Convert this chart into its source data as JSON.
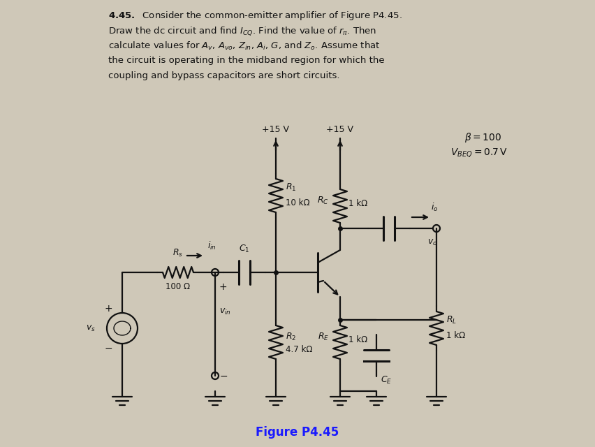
{
  "bg_color": "#cfc8b8",
  "text_color": "#000000",
  "fig_caption": "Figure P4.45",
  "caption_color": "#1a1aff",
  "beta_label": "$\\beta = 100$",
  "vbeq_label": "$V_{BEQ} = 0.7\\,\\mathrm{V}$",
  "vcc_label": "+15 V",
  "Rs_label": "$R_s$",
  "Rs_val": "100 Ω",
  "iin_label": "$i_{in}$",
  "C1_label": "$C_1$",
  "R1_label": "$R_1$",
  "R1_val": "10 kΩ",
  "R2_label": "$R_2$",
  "R2_val": "4.7 kΩ",
  "RC_label": "$R_C$",
  "RC_val": "1 kΩ",
  "RE_label": "$R_E$",
  "RE_val": "1 kΩ",
  "CE_label": "$C_E$",
  "RL_label": "$R_L$",
  "RL_val": "1 kΩ",
  "io_label": "$i_o$",
  "vo_label": "$v_o$",
  "vs_label": "$v_s$",
  "vin_label": "$v_{in}$"
}
